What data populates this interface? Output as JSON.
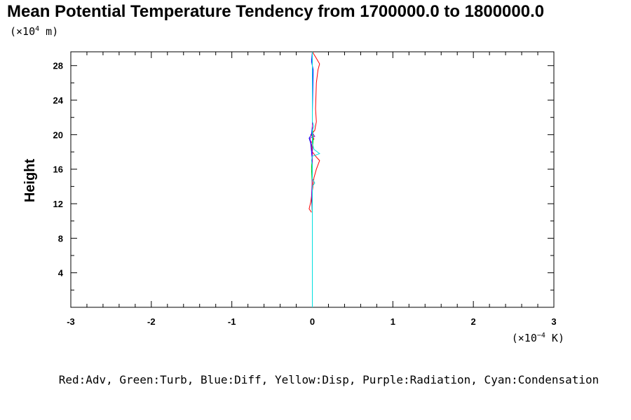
{
  "chart_data": {
    "type": "line",
    "title": "Mean Potential Temperature Tendency from 1700000.0 to 1800000.0",
    "ylabel": "Height",
    "y_unit": {
      "prefix": "(×10",
      "exponent": "4",
      "suffix": " m)"
    },
    "x_unit": {
      "prefix": "(×10",
      "exponent": "−4",
      "suffix": " K)"
    },
    "xlim": [
      -3,
      3
    ],
    "ylim": [
      0,
      29.6
    ],
    "x_ticks": [
      -3,
      -2,
      -1,
      0,
      1,
      2,
      3
    ],
    "x_tick_labels": [
      "-3",
      "-2",
      "-1",
      "0",
      "1",
      "2",
      "3"
    ],
    "y_ticks": [
      4,
      8,
      12,
      16,
      20,
      24,
      28
    ],
    "y_tick_labels": [
      "4",
      "8",
      "12",
      "16",
      "20",
      "24",
      "28"
    ],
    "legend_text": "Red:Adv, Green:Turb, Blue:Diff, Yellow:Disp, Purple:Radiation, Cyan:Condensation",
    "series": [
      {
        "name": "Adv",
        "color": "#ff0000",
        "points": [
          [
            -0.01,
            11.0
          ],
          [
            -0.04,
            11.4
          ],
          [
            -0.02,
            12.2
          ],
          [
            0.0,
            13.5
          ],
          [
            0.02,
            15.0
          ],
          [
            0.05,
            16.0
          ],
          [
            0.09,
            17.0
          ],
          [
            0.05,
            17.4
          ],
          [
            0.0,
            18.0
          ],
          [
            -0.02,
            19.0
          ],
          [
            0.02,
            19.5
          ],
          [
            -0.02,
            20.0
          ],
          [
            0.03,
            20.5
          ],
          [
            0.05,
            21.5
          ],
          [
            0.04,
            23.0
          ],
          [
            0.05,
            26.0
          ],
          [
            0.07,
            27.5
          ],
          [
            0.09,
            28.2
          ],
          [
            0.04,
            29.0
          ],
          [
            0.0,
            29.6
          ]
        ]
      },
      {
        "name": "Turb",
        "color": "#00c000",
        "points": [
          [
            0.0,
            11.0
          ],
          [
            -0.01,
            12.5
          ],
          [
            0.0,
            14.0
          ],
          [
            -0.01,
            16.0
          ],
          [
            0.0,
            18.0
          ],
          [
            0.01,
            19.5
          ],
          [
            0.0,
            21.0
          ],
          [
            0.0,
            29.6
          ]
        ]
      },
      {
        "name": "Diff",
        "color": "#0000ff",
        "points": [
          [
            0.0,
            11.0
          ],
          [
            0.0,
            14.0
          ],
          [
            0.0,
            17.0
          ],
          [
            -0.02,
            19.0
          ],
          [
            -0.04,
            19.6
          ],
          [
            -0.01,
            20.0
          ],
          [
            0.0,
            21.0
          ],
          [
            0.0,
            22.5
          ],
          [
            0.01,
            27.5
          ],
          [
            -0.01,
            28.5
          ],
          [
            0.0,
            29.6
          ]
        ]
      },
      {
        "name": "Disp",
        "color": "#e6e600",
        "points": [
          [
            0.0,
            11.0
          ],
          [
            0.0,
            29.6
          ]
        ]
      },
      {
        "name": "Radiation",
        "color": "#a000c0",
        "points": [
          [
            0.0,
            11.0
          ],
          [
            -0.01,
            13.0
          ],
          [
            0.0,
            15.0
          ],
          [
            0.0,
            18.5
          ],
          [
            -0.03,
            19.6
          ],
          [
            0.03,
            19.8
          ],
          [
            0.0,
            20.2
          ],
          [
            0.0,
            29.6
          ]
        ]
      },
      {
        "name": "Condensation",
        "color": "#00e0e0",
        "points": [
          [
            0.0,
            0.0
          ],
          [
            0.0,
            11.0
          ],
          [
            0.0,
            14.0
          ],
          [
            0.03,
            14.4
          ],
          [
            0.0,
            14.9
          ],
          [
            0.0,
            16.5
          ],
          [
            -0.01,
            17.0
          ],
          [
            0.0,
            17.5
          ],
          [
            0.09,
            17.8
          ],
          [
            0.02,
            18.3
          ],
          [
            0.0,
            19.0
          ],
          [
            0.0,
            20.5
          ],
          [
            0.02,
            21.0
          ],
          [
            0.0,
            21.5
          ],
          [
            0.0,
            29.6
          ]
        ]
      }
    ]
  }
}
